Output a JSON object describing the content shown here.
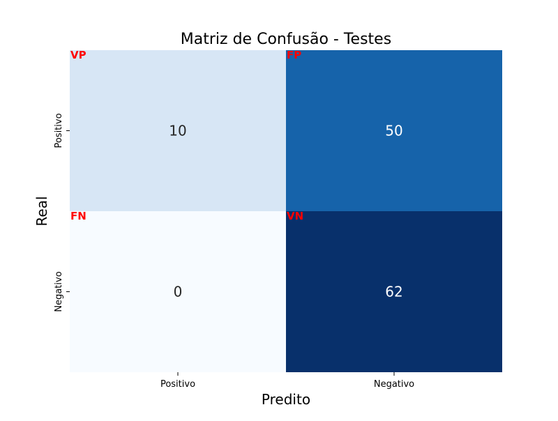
{
  "chart_data": {
    "type": "heatmap",
    "title": "Matriz de Confusão - Testes",
    "xlabel": "Predito",
    "ylabel": "Real",
    "x_categories": [
      "Positivo",
      "Negativo"
    ],
    "y_categories": [
      "Positivo",
      "Negativo"
    ],
    "values": [
      [
        10,
        50
      ],
      [
        0,
        62
      ]
    ],
    "cell_tags": [
      [
        "VP",
        "FP"
      ],
      [
        "FN",
        "VN"
      ]
    ],
    "colormap": "Blues",
    "value_range": [
      0,
      62
    ],
    "tag_color": "#ff0000",
    "light_text_color": "#262626",
    "dark_text_color": "#ffffff"
  }
}
